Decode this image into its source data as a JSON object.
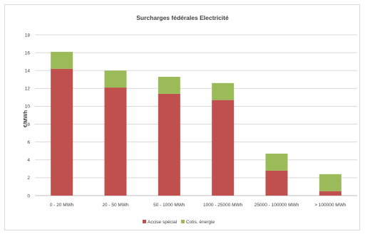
{
  "chart_data": {
    "type": "bar",
    "stacked": true,
    "title": "Surcharges fédérales Electricité",
    "ylabel": "€/MWh",
    "xlabel": "",
    "ylim": [
      0,
      18
    ],
    "yticks": [
      0,
      2,
      4,
      6,
      8,
      10,
      12,
      14,
      16,
      18
    ],
    "grid": true,
    "legend_position": "bottom",
    "categories": [
      "0 - 20 MWh",
      "20 - 50 MWh",
      "50 - 1000 MWh",
      "1000 - 25000 MWh",
      "25000 - 100000 MWh",
      "> 100000 MWh"
    ],
    "series": [
      {
        "name": "Accise spécial",
        "color": "#c0504d",
        "values": [
          14.2,
          12.1,
          11.4,
          10.7,
          2.8,
          0.5
        ]
      },
      {
        "name": "Cotis. énergie",
        "color": "#9bbb59",
        "values": [
          1.9,
          1.9,
          1.9,
          1.9,
          1.9,
          1.9
        ]
      }
    ]
  }
}
